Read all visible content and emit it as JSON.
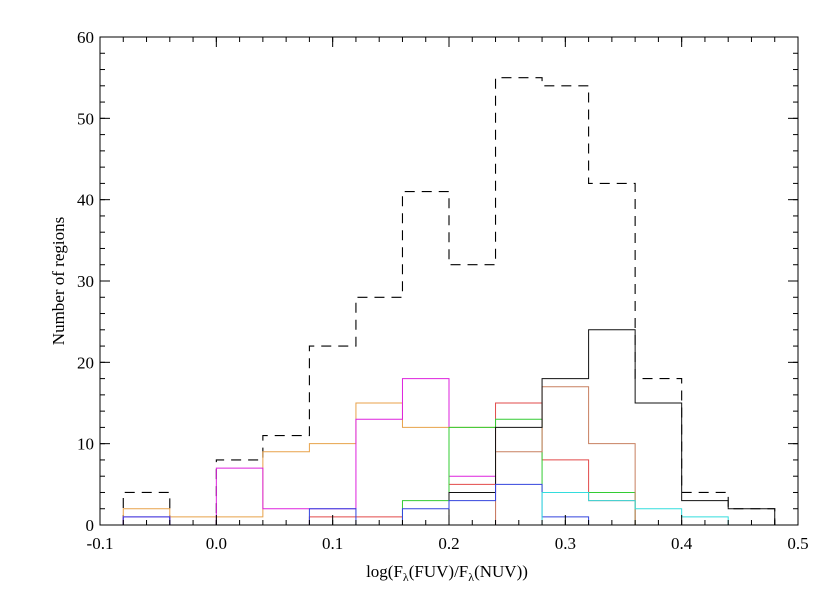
{
  "chart_data": {
    "type": "histogram",
    "xlabel": {
      "prefix": "log(F",
      "sub1": "λ",
      "mid": "(FUV)/F",
      "sub2": "λ",
      "suffix": "(NUV))"
    },
    "ylabel": "Number of regions",
    "xlim": [
      -0.1,
      0.5
    ],
    "ylim": [
      0,
      60
    ],
    "x_ticks": [
      -0.1,
      0.0,
      0.1,
      0.2,
      0.3,
      0.4,
      0.5
    ],
    "x_tick_labels": [
      "-0.1",
      "0.0",
      "0.1",
      "0.2",
      "0.3",
      "0.4",
      "0.5"
    ],
    "y_ticks": [
      0,
      10,
      20,
      30,
      40,
      50,
      60
    ],
    "y_tick_labels": [
      "0",
      "10",
      "20",
      "30",
      "40",
      "50",
      "60"
    ],
    "grid": false,
    "series": [
      {
        "color": "#000000",
        "dash": true,
        "edges": [
          -0.08,
          -0.04,
          0.0,
          0.04,
          0.08,
          0.12,
          0.16,
          0.2,
          0.24,
          0.28,
          0.32,
          0.36,
          0.4,
          0.44,
          0.48
        ],
        "values": [
          4,
          0,
          8,
          11,
          22,
          28,
          41,
          32,
          55,
          54,
          42,
          18,
          4,
          2
        ]
      },
      {
        "color": "#e8a24a",
        "dash": false,
        "edges": [
          -0.08,
          -0.04,
          0.0,
          0.04,
          0.08,
          0.12,
          0.16,
          0.2,
          0.24,
          0.28,
          0.32,
          0.36,
          0.4,
          0.44,
          0.48
        ],
        "values": [
          2,
          1,
          1,
          9,
          10,
          15,
          12,
          12,
          0,
          0,
          0,
          0,
          0,
          0
        ]
      },
      {
        "color": "#dd22dd",
        "dash": false,
        "edges": [
          -0.08,
          -0.04,
          0.0,
          0.04,
          0.08,
          0.12,
          0.16,
          0.2,
          0.24,
          0.28,
          0.32,
          0.36,
          0.4,
          0.44,
          0.48
        ],
        "values": [
          1,
          0,
          7,
          2,
          2,
          13,
          18,
          6,
          0,
          0,
          0,
          0,
          0,
          0
        ]
      },
      {
        "color": "#e24a4a",
        "dash": false,
        "edges": [
          -0.08,
          -0.04,
          0.0,
          0.04,
          0.08,
          0.12,
          0.16,
          0.2,
          0.24,
          0.28,
          0.32,
          0.36,
          0.4,
          0.44,
          0.48
        ],
        "values": [
          0,
          0,
          0,
          0,
          1,
          1,
          0,
          5,
          15,
          8,
          3,
          0,
          0,
          0
        ]
      },
      {
        "color": "#33cc33",
        "dash": false,
        "edges": [
          -0.08,
          -0.04,
          0.0,
          0.04,
          0.08,
          0.12,
          0.16,
          0.2,
          0.24,
          0.28,
          0.32,
          0.36,
          0.4,
          0.44,
          0.48
        ],
        "values": [
          0,
          0,
          0,
          0,
          0,
          0,
          3,
          12,
          13,
          4,
          4,
          0,
          0,
          0
        ]
      },
      {
        "color": "#c88060",
        "dash": false,
        "edges": [
          -0.08,
          -0.04,
          0.0,
          0.04,
          0.08,
          0.12,
          0.16,
          0.2,
          0.24,
          0.28,
          0.32,
          0.36,
          0.4,
          0.44,
          0.48
        ],
        "values": [
          0,
          0,
          0,
          0,
          0,
          0,
          0,
          0,
          9,
          17,
          10,
          0,
          0,
          0
        ]
      },
      {
        "color": "#111111",
        "dash": false,
        "edges": [
          -0.08,
          -0.04,
          0.0,
          0.04,
          0.08,
          0.12,
          0.16,
          0.2,
          0.24,
          0.28,
          0.32,
          0.36,
          0.4,
          0.44,
          0.48
        ],
        "values": [
          0,
          0,
          0,
          0,
          0,
          0,
          0,
          4,
          12,
          18,
          24,
          15,
          3,
          2
        ]
      },
      {
        "color": "#3344dd",
        "dash": false,
        "edges": [
          -0.08,
          -0.04,
          0.0,
          0.04,
          0.08,
          0.12,
          0.16,
          0.2,
          0.24,
          0.28,
          0.32,
          0.36,
          0.4,
          0.44,
          0.48
        ],
        "values": [
          1,
          0,
          0,
          0,
          2,
          0,
          2,
          3,
          5,
          1,
          0,
          0,
          0,
          0
        ]
      },
      {
        "color": "#33dddd",
        "dash": false,
        "edges": [
          -0.08,
          -0.04,
          0.0,
          0.04,
          0.08,
          0.12,
          0.16,
          0.2,
          0.24,
          0.28,
          0.32,
          0.36,
          0.4,
          0.44,
          0.48
        ],
        "values": [
          0,
          0,
          0,
          0,
          0,
          0,
          0,
          0,
          0,
          4,
          3,
          2,
          1,
          0
        ]
      }
    ]
  }
}
